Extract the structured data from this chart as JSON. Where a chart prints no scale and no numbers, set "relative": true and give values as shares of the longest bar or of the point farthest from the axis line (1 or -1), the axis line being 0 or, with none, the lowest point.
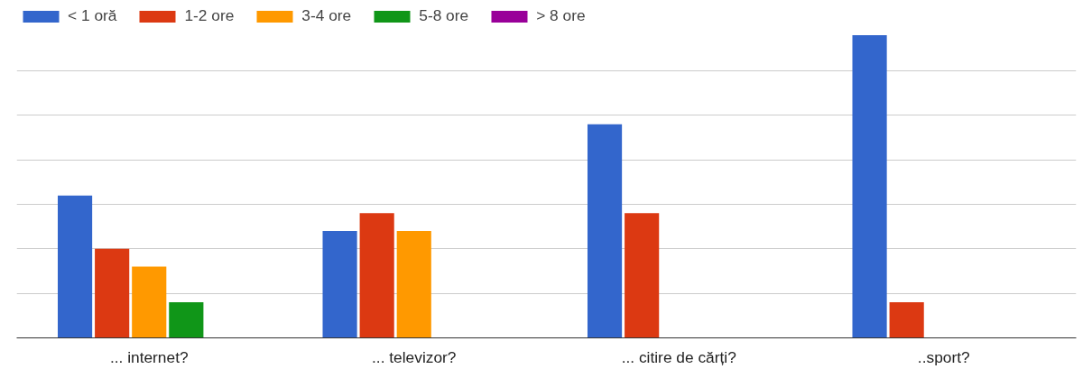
{
  "chart_data": {
    "type": "bar",
    "relative": true,
    "categories": [
      "... internet?",
      "... televizor?",
      "... citire de cărți?",
      "..sport?"
    ],
    "series": [
      {
        "name": "< 1 oră",
        "color": "#3366cc",
        "values": [
          0.4706,
          0.3529,
          0.7059,
          1
        ]
      },
      {
        "name": "1-2 ore",
        "color": "#dc3912",
        "values": [
          0.2941,
          0.4118,
          0.4118,
          0.1176
        ]
      },
      {
        "name": "3-4 ore",
        "color": "#ff9900",
        "values": [
          0.2353,
          0.3529,
          0,
          0
        ]
      },
      {
        "name": "5-8 ore",
        "color": "#109618",
        "values": [
          0.1176,
          0,
          0,
          0
        ]
      },
      {
        "name": "> 8 ore",
        "color": "#990099",
        "values": [
          0,
          0,
          0,
          0
        ]
      }
    ],
    "grid": "y",
    "legend": "top left"
  }
}
